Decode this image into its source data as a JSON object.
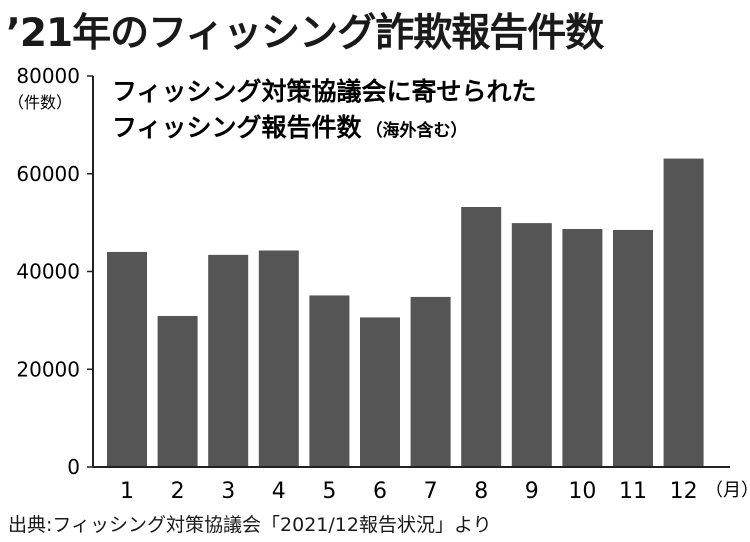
{
  "title": "’21年のフィッシング詐欺報告件数",
  "source": "出典:フィッシング対策協議会「2021/12報告状況」より",
  "chart_data": {
    "type": "bar",
    "subtitle_line1": "フィッシング対策協議会に寄せられた",
    "subtitle_line2": "フィッシング報告件数",
    "subtitle_note": "（海外含む）",
    "ylabel": "（件数）",
    "xunit": "（月）",
    "ylim": [
      0,
      80000
    ],
    "yticks": [
      "0",
      "20000",
      "40000",
      "60000",
      "80000"
    ],
    "ytick_values": [
      0,
      20000,
      40000,
      60000,
      80000
    ],
    "categories": [
      "1",
      "2",
      "3",
      "4",
      "5",
      "6",
      "7",
      "8",
      "9",
      "10",
      "11",
      "12"
    ],
    "values": [
      44000,
      30900,
      43400,
      44300,
      35100,
      30600,
      34800,
      53200,
      49900,
      48700,
      48500,
      63100
    ],
    "bar_color": "#555555",
    "axis_color": "#222222"
  }
}
